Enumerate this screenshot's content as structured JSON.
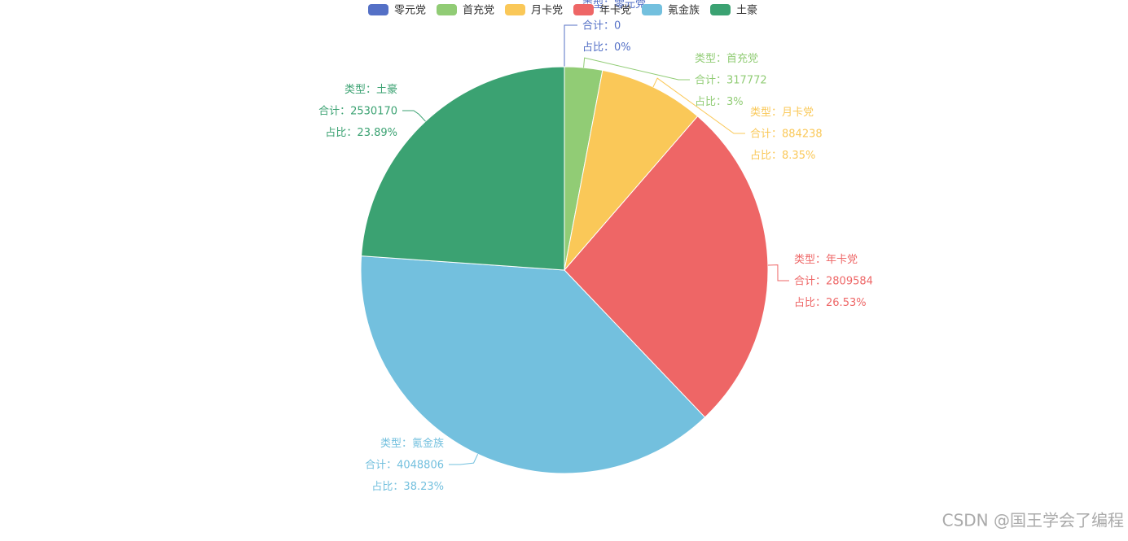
{
  "chart_data": {
    "type": "pie",
    "categories": [
      "零元党",
      "首充党",
      "月卡党",
      "年卡党",
      "氪金族",
      "土豪"
    ],
    "values": [
      0,
      317772,
      884238,
      2809584,
      4048806,
      2530170
    ],
    "share_labels": [
      "0%",
      "3%",
      "8.35%",
      "26.53%",
      "38.23%",
      "23.89%"
    ],
    "colors": [
      "#5470c6",
      "#91cc75",
      "#fac858",
      "#ee6666",
      "#73c0de",
      "#3ba272"
    ],
    "label_prefixes": [
      "类型：",
      "合计：",
      "占比："
    ],
    "legend_position": "top"
  },
  "watermark": "CSDN @国王学会了编程"
}
